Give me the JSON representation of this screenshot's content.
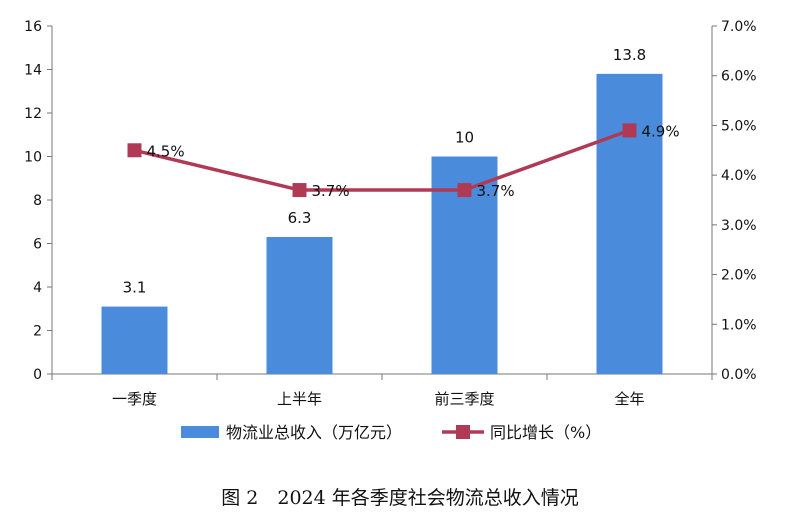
{
  "chart_data": {
    "type": "bar+line",
    "title": "",
    "categories": [
      "一季度",
      "上半年",
      "前三季度",
      "全年"
    ],
    "series": [
      {
        "name": "物流业总收入（万亿元）",
        "type": "bar",
        "axis": "left",
        "values": [
          3.1,
          6.3,
          10,
          13.8
        ],
        "labels": [
          "3.1",
          "6.3",
          "10",
          "13.8"
        ],
        "color": "#4A8CDB"
      },
      {
        "name": "同比增长（%）",
        "type": "line",
        "axis": "right",
        "values": [
          4.5,
          3.7,
          3.7,
          4.9
        ],
        "labels": [
          "4.5%",
          "3.7%",
          "3.7%",
          "4.9%"
        ],
        "color": "#B03A55"
      }
    ],
    "left_axis": {
      "ylim": [
        0,
        16
      ],
      "ticks": [
        "0",
        "2",
        "4",
        "6",
        "8",
        "10",
        "12",
        "14",
        "16"
      ]
    },
    "right_axis": {
      "ylim": [
        0,
        7
      ],
      "ticks": [
        "0.0%",
        "1.0%",
        "2.0%",
        "3.0%",
        "4.0%",
        "5.0%",
        "6.0%",
        "7.0%"
      ]
    },
    "grid": false,
    "legend_position": "bottom",
    "caption": "图 2　2024 年各季度社会物流总收入情况"
  }
}
